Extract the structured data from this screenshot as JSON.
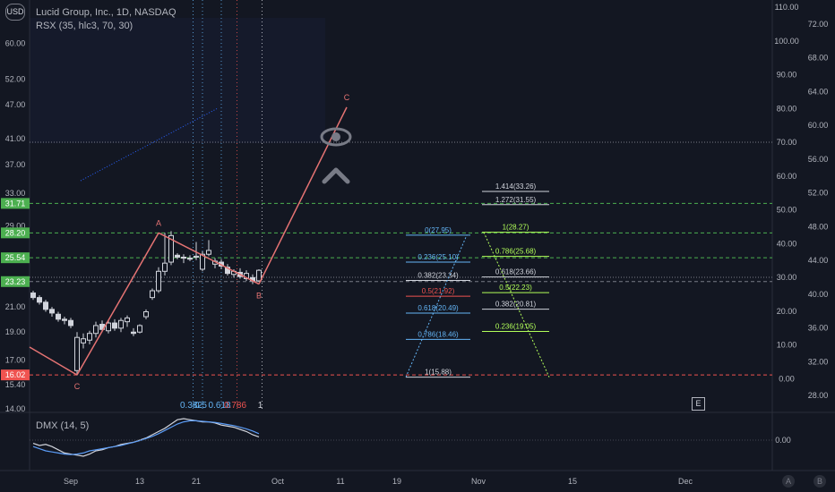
{
  "header": {
    "symbol_line": "Lucid Group, Inc., 1D, NASDAQ",
    "indicator_line": "RSX (35, hlc3, 70, 30)",
    "currency_badge": "USD",
    "lower_indicator": "DMX (14, 5)",
    "scale_button_a": "A",
    "scale_button_b": "B",
    "e_button": "E"
  },
  "colors": {
    "background": "#131722",
    "candle_up": "#d1d4dc",
    "candle_down": "#131722",
    "abc_line": "#e57373",
    "green_level": "#4caf50",
    "red_level": "#ef5350",
    "fib_blue": "#64b5f6",
    "fib_yellow_green": "#b2ff59",
    "grid_dash_blue": "#2962ff"
  },
  "chart_data": {
    "type": "candlestick",
    "title": "Lucid Group, Inc., 1D, NASDAQ",
    "x_tick_labels": [
      "Sep",
      "13",
      "21",
      "Oct",
      "11",
      "19",
      "Nov",
      "15",
      "Dec"
    ],
    "left_axis_labels": [
      "60.00",
      "52.00",
      "47.00",
      "41.00",
      "37.00",
      "33.00",
      "29.00",
      "21.00",
      "19.00",
      "17.00",
      "15.40",
      "14.00"
    ],
    "left_axis_scale": "log",
    "left_axis_badges": [
      {
        "label": "31.71",
        "color": "#4caf50"
      },
      {
        "label": "28.20",
        "color": "#4caf50"
      },
      {
        "label": "25.54",
        "color": "#4caf50"
      },
      {
        "label": "23.23",
        "color": "#4caf50"
      },
      {
        "label": "16.02",
        "color": "#ef5350"
      }
    ],
    "right_axis_rsx_labels": [
      "110.00",
      "100.00",
      "90.00",
      "80.00",
      "70.00",
      "60.00",
      "50.00",
      "40.00",
      "30.00",
      "20.00",
      "10.00",
      "0.00"
    ],
    "right_axis_outer_labels": [
      "72.00",
      "68.00",
      "64.00",
      "60.00",
      "56.00",
      "52.00",
      "48.00",
      "44.00",
      "40.00",
      "36.00",
      "32.00",
      "28.00"
    ],
    "dmx_axis_label": "0.00",
    "horizontal_levels": [
      {
        "value": 31.71,
        "color": "#4caf50"
      },
      {
        "value": 28.2,
        "color": "#4caf50"
      },
      {
        "value": 25.54,
        "color": "#4caf50"
      },
      {
        "value": 23.23,
        "color": "#787b86"
      },
      {
        "value": 16.02,
        "color": "#ef5350"
      }
    ],
    "abc_points": [
      {
        "label": "C",
        "x": 7,
        "price": 16.02
      },
      {
        "label": "A",
        "x": 20,
        "price": 28.2
      },
      {
        "label": "B",
        "x": 36,
        "price": 23.0
      },
      {
        "label": "C",
        "x": 50,
        "price": 46.5
      }
    ],
    "candles": [
      [
        0,
        22.2,
        22.4,
        21.6,
        21.8
      ],
      [
        1,
        21.8,
        22.0,
        21.2,
        21.4
      ],
      [
        2,
        21.4,
        21.6,
        20.6,
        20.8
      ],
      [
        3,
        20.8,
        21.0,
        20.2,
        20.5
      ],
      [
        4,
        20.4,
        20.6,
        19.8,
        20.0
      ],
      [
        5,
        20.0,
        20.2,
        19.6,
        19.9
      ],
      [
        6,
        19.9,
        20.1,
        19.3,
        19.5
      ],
      [
        7,
        16.3,
        19.0,
        16.0,
        18.6
      ],
      [
        8,
        18.2,
        18.9,
        17.8,
        18.5
      ],
      [
        9,
        18.4,
        19.1,
        18.1,
        18.9
      ],
      [
        10,
        18.9,
        19.8,
        18.6,
        19.5
      ],
      [
        11,
        19.6,
        19.9,
        19.0,
        19.2
      ],
      [
        12,
        19.1,
        19.9,
        18.9,
        19.7
      ],
      [
        13,
        19.7,
        20.0,
        19.1,
        19.3
      ],
      [
        14,
        19.3,
        20.1,
        19.0,
        19.9
      ],
      [
        15,
        19.8,
        20.3,
        19.4,
        20.1
      ],
      [
        16,
        19.0,
        19.3,
        18.7,
        18.9
      ],
      [
        17,
        19.0,
        19.6,
        18.9,
        19.5
      ],
      [
        18,
        20.2,
        20.8,
        20.0,
        20.6
      ],
      [
        19,
        21.8,
        22.6,
        21.6,
        22.4
      ],
      [
        20,
        22.4,
        24.6,
        22.2,
        24.2
      ],
      [
        21,
        24.2,
        28.2,
        23.8,
        25.0
      ],
      [
        22,
        25.1,
        28.4,
        24.8,
        27.9
      ],
      [
        23,
        25.8,
        26.0,
        25.4,
        25.6
      ],
      [
        24,
        25.6,
        25.9,
        25.0,
        25.5
      ],
      [
        25,
        25.5,
        25.8,
        25.2,
        25.4
      ],
      [
        26,
        25.6,
        27.2,
        25.3,
        25.7
      ],
      [
        27,
        24.4,
        26.2,
        24.2,
        25.9
      ],
      [
        28,
        25.9,
        27.4,
        25.7,
        26.3
      ],
      [
        29,
        24.9,
        25.5,
        24.5,
        25.2
      ],
      [
        30,
        25.1,
        25.4,
        24.4,
        24.7
      ],
      [
        31,
        24.6,
        24.9,
        23.8,
        24.0
      ],
      [
        32,
        23.9,
        24.4,
        23.6,
        24.2
      ],
      [
        33,
        24.1,
        24.5,
        23.5,
        23.7
      ],
      [
        34,
        23.5,
        24.3,
        23.3,
        24.0
      ],
      [
        35,
        23.6,
        23.9,
        23.0,
        23.3
      ],
      [
        36,
        23.3,
        24.4,
        23.2,
        24.3
      ]
    ],
    "fib_retracement_left": [
      {
        "label": "0(27.95)",
        "value": 27.95,
        "color": "#64b5f6"
      },
      {
        "label": "0.236(25.10)",
        "value": 25.1,
        "color": "#64b5f6"
      },
      {
        "label": "0.382(23.34)",
        "value": 23.34,
        "color": "#d1d4dc"
      },
      {
        "label": "0.5(21.92)",
        "value": 21.92,
        "color": "#ef5350"
      },
      {
        "label": "0.618(20.49)",
        "value": 20.49,
        "color": "#64b5f6"
      },
      {
        "label": "0.786(18.46)",
        "value": 18.46,
        "color": "#64b5f6"
      },
      {
        "label": "1(15.88)",
        "value": 15.88,
        "color": "#d1d4dc"
      }
    ],
    "fib_right": [
      {
        "label": "1.414(33.26)",
        "value": 33.26,
        "color": "#d1d4dc"
      },
      {
        "label": "1.272(31.55)",
        "value": 31.55,
        "color": "#d1d4dc"
      },
      {
        "label": "1(28.27)",
        "value": 28.27,
        "color": "#b2ff59"
      },
      {
        "label": "0.786(25.68)",
        "value": 25.68,
        "color": "#b2ff59"
      },
      {
        "label": "0.618(23.66)",
        "value": 23.66,
        "color": "#d1d4dc"
      },
      {
        "label": "0.5(22.23)",
        "value": 22.23,
        "color": "#b2ff59"
      },
      {
        "label": "0.382(20.81)",
        "value": 20.81,
        "color": "#d1d4dc"
      },
      {
        "label": "0.236(19.05)",
        "value": 19.05,
        "color": "#b2ff59"
      }
    ],
    "fib_time_labels": [
      {
        "label": "0.382",
        "x": 25.5,
        "color": "#64b5f6"
      },
      {
        "label": "0.5",
        "x": 27,
        "color": "#64b5f6"
      },
      {
        "label": "0.618",
        "x": 30,
        "color": "#64b5f6"
      },
      {
        "label": "0.786",
        "x": 32.5,
        "color": "#ef5350"
      },
      {
        "label": "1",
        "x": 36.5,
        "color": "#d1d4dc"
      }
    ],
    "dmx_series": [
      {
        "color": "#d1d4dc",
        "values": [
          -0.3,
          -0.5,
          -0.4,
          -0.6,
          -0.9,
          -1.2,
          -1.3,
          -1.4,
          -1.5,
          -1.3,
          -1.0,
          -0.9,
          -0.7,
          -0.6,
          -0.4,
          -0.3,
          -0.2,
          0.0,
          0.2,
          0.5,
          0.8,
          1.1,
          1.5,
          1.9,
          2.0,
          1.9,
          1.8,
          1.7,
          1.7,
          1.6,
          1.4,
          1.3,
          1.2,
          1.0,
          0.8,
          0.5,
          0.3
        ]
      },
      {
        "color": "#5b9cf6",
        "values": [
          -0.6,
          -0.8,
          -1.0,
          -1.1,
          -1.2,
          -1.3,
          -1.35,
          -1.3,
          -1.2,
          -1.0,
          -0.9,
          -0.8,
          -0.7,
          -0.6,
          -0.5,
          -0.35,
          -0.2,
          -0.05,
          0.15,
          0.35,
          0.6,
          0.9,
          1.2,
          1.5,
          1.7,
          1.8,
          1.8,
          1.75,
          1.7,
          1.65,
          1.55,
          1.45,
          1.35,
          1.2,
          1.05,
          0.85,
          0.6
        ]
      }
    ]
  }
}
